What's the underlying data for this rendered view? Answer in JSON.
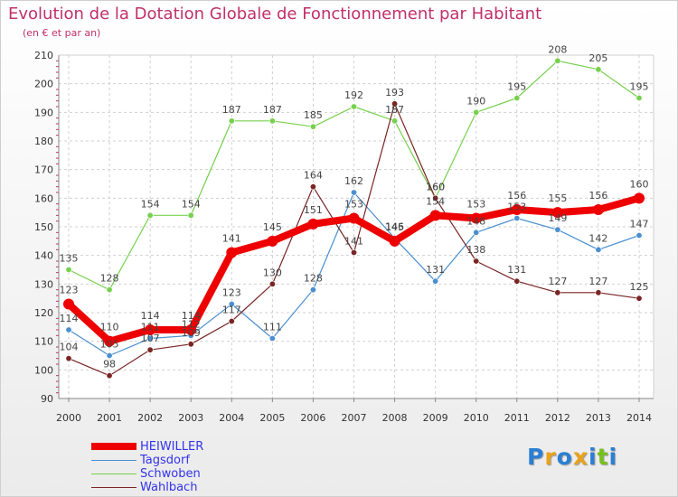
{
  "header": {
    "title": "Evolution de la Dotation Globale de Fonctionnement par Habitant",
    "subtitle": "(en € et par an)"
  },
  "chart_data": {
    "type": "line",
    "title": "Evolution de la Dotation Globale de Fonctionnement par Habitant",
    "subtitle": "(en € et par an)",
    "xlabel": "",
    "ylabel": "",
    "x": [
      "2000",
      "2001",
      "2002",
      "2003",
      "2004",
      "2005",
      "2006",
      "2007",
      "2008",
      "2009",
      "2010",
      "2011",
      "2012",
      "2013",
      "2014"
    ],
    "ylim": [
      90,
      210
    ],
    "yticks": [
      90,
      100,
      110,
      120,
      130,
      140,
      150,
      160,
      170,
      180,
      190,
      200,
      210
    ],
    "grid": true,
    "legend_position": "bottom-left",
    "series": [
      {
        "name": "HEIWILLER",
        "color": "#ee0000",
        "emphasis": true,
        "values": [
          123,
          110,
          114,
          114,
          141,
          145,
          151,
          153,
          145,
          154,
          153,
          156,
          155,
          156,
          160
        ]
      },
      {
        "name": "Tagsdorf",
        "color": "#4a8fd0",
        "values": [
          114,
          105,
          111,
          112,
          123,
          111,
          128,
          162,
          146,
          131,
          148,
          153,
          149,
          142,
          147
        ]
      },
      {
        "name": "Schwoben",
        "color": "#77d04e",
        "values": [
          135,
          128,
          154,
          154,
          187,
          187,
          185,
          192,
          187,
          160,
          190,
          195,
          208,
          205,
          195
        ]
      },
      {
        "name": "Wahlbach",
        "color": "#7a2424",
        "values": [
          104,
          98,
          107,
          109,
          117,
          130,
          164,
          141,
          193,
          160,
          138,
          131,
          127,
          127,
          125
        ]
      }
    ]
  },
  "logo": {
    "letters": [
      "P",
      "r",
      "o",
      "x",
      "i",
      "t",
      "i"
    ],
    "colors": [
      "#2a7fd4",
      "#e8a21c",
      "#2a7fd4",
      "#e8a21c",
      "#2a7fd4",
      "#77c11f",
      "#2a7fd4"
    ]
  }
}
